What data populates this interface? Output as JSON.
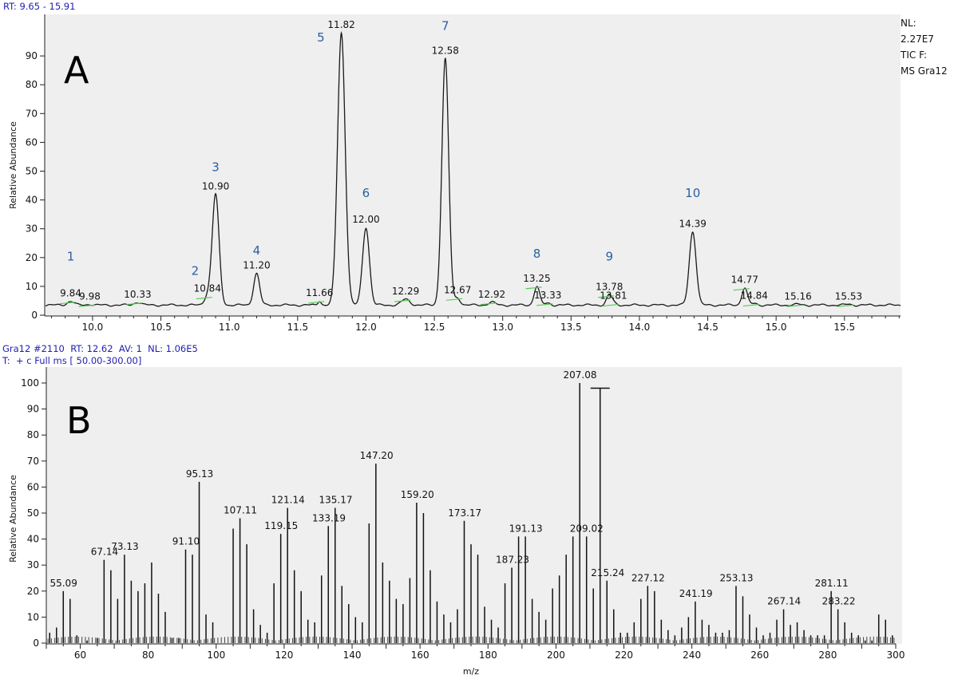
{
  "panel_a": {
    "header": "RT: 9.65 - 15.91",
    "nl_info": [
      "NL:",
      "2.27E7",
      "TIC F:",
      "MS Gra12"
    ],
    "letter": "A"
  },
  "panel_b": {
    "header_line1": "Gra12 #2110  RT: 12.62  AV: 1  NL: 1.06E5",
    "header_line2": "T:  + c Full ms [ 50.00-300.00]",
    "letter": "B"
  },
  "colors": {
    "header_text": "#1f1fb0",
    "peak_number": "#2a5fa0",
    "plot_background": "#efefef",
    "trace": "#1a1a1a",
    "baseline_marker": "#55cc55"
  },
  "chart_data": [
    {
      "type": "line",
      "title": "",
      "xlabel": "",
      "ylabel": "Relative Abundance",
      "xlim": [
        9.65,
        15.91
      ],
      "ylim": [
        0,
        100
      ],
      "xticks": [
        10.0,
        10.5,
        11.0,
        11.5,
        12.0,
        12.5,
        13.0,
        13.5,
        14.0,
        14.5,
        15.0,
        15.5
      ],
      "xtick_labels": [
        "10.0",
        "10.5",
        "11.0",
        "11.5",
        "12.0",
        "12.5",
        "13.0",
        "13.5",
        "14.0",
        "14.5",
        "15.0",
        "15.5"
      ],
      "yticks": [
        0,
        10,
        20,
        30,
        40,
        50,
        60,
        70,
        80,
        90
      ],
      "baseline": 3.5,
      "peaks": [
        {
          "rt": 9.84,
          "label": "9.84",
          "height": 4.8,
          "width": 0.025
        },
        {
          "rt": 9.98,
          "label": "9.98",
          "height": 3.8,
          "width": 0.02
        },
        {
          "rt": 10.33,
          "label": "10.33",
          "height": 4.5,
          "width": 0.025
        },
        {
          "rt": 10.84,
          "label": "10.84",
          "height": 6.5,
          "width": 0.022
        },
        {
          "rt": 10.9,
          "label": "10.90",
          "height": 42,
          "width": 0.025
        },
        {
          "rt": 11.2,
          "label": "11.20",
          "height": 14.5,
          "width": 0.022
        },
        {
          "rt": 11.66,
          "label": "11.66",
          "height": 5,
          "width": 0.012
        },
        {
          "rt": 11.82,
          "label": "11.82",
          "height": 98,
          "width": 0.028
        },
        {
          "rt": 12.0,
          "label": "12.00",
          "height": 30.5,
          "width": 0.025
        },
        {
          "rt": 12.29,
          "label": "12.29",
          "height": 5.5,
          "width": 0.03
        },
        {
          "rt": 12.58,
          "label": "12.58",
          "height": 89,
          "width": 0.025
        },
        {
          "rt": 12.67,
          "label": "12.67",
          "height": 6,
          "width": 0.02
        },
        {
          "rt": 12.92,
          "label": "12.92",
          "height": 4.5,
          "width": 0.025
        },
        {
          "rt": 13.25,
          "label": "13.25",
          "height": 10,
          "width": 0.02
        },
        {
          "rt": 13.33,
          "label": "13.33",
          "height": 4.2,
          "width": 0.02
        },
        {
          "rt": 13.78,
          "label": "13.78",
          "height": 7,
          "width": 0.02
        },
        {
          "rt": 13.81,
          "label": "13.81",
          "height": 4,
          "width": 0.02
        },
        {
          "rt": 14.39,
          "label": "14.39",
          "height": 29,
          "width": 0.025
        },
        {
          "rt": 14.77,
          "label": "14.77",
          "height": 9.5,
          "width": 0.02
        },
        {
          "rt": 14.84,
          "label": "14.84",
          "height": 4,
          "width": 0.02
        },
        {
          "rt": 15.16,
          "label": "15.16",
          "height": 3.8,
          "width": 0.02
        },
        {
          "rt": 15.53,
          "label": "15.53",
          "height": 3.8,
          "width": 0.02
        }
      ],
      "peak_numbers": [
        {
          "n": "1",
          "rt": 9.84,
          "y": 19
        },
        {
          "n": "2",
          "rt": 10.75,
          "y": 14
        },
        {
          "n": "3",
          "rt": 10.9,
          "y": 50
        },
        {
          "n": "4",
          "rt": 11.2,
          "y": 21
        },
        {
          "n": "5",
          "rt": 11.67,
          "y": 95
        },
        {
          "n": "6",
          "rt": 12.0,
          "y": 41
        },
        {
          "n": "7",
          "rt": 12.58,
          "y": 99
        },
        {
          "n": "8",
          "rt": 13.25,
          "y": 20
        },
        {
          "n": "9",
          "rt": 13.78,
          "y": 19
        },
        {
          "n": "10",
          "rt": 14.39,
          "y": 41
        }
      ]
    },
    {
      "type": "bar",
      "title": "",
      "xlabel": "m/z",
      "ylabel": "Relative Abundance",
      "xlim": [
        50,
        300
      ],
      "ylim": [
        0,
        100
      ],
      "xticks": [
        60,
        80,
        100,
        120,
        140,
        160,
        180,
        200,
        220,
        240,
        260,
        280,
        300
      ],
      "yticks": [
        0,
        10,
        20,
        30,
        40,
        50,
        60,
        70,
        80,
        90,
        100
      ],
      "peaks": [
        [
          51,
          4
        ],
        [
          53,
          6
        ],
        [
          55,
          20
        ],
        [
          57,
          17
        ],
        [
          59,
          3
        ],
        [
          62,
          1
        ],
        [
          65,
          2
        ],
        [
          67,
          32
        ],
        [
          69,
          28
        ],
        [
          71,
          17
        ],
        [
          73,
          34
        ],
        [
          75,
          24
        ],
        [
          77,
          20
        ],
        [
          79,
          23
        ],
        [
          81,
          31
        ],
        [
          83,
          19
        ],
        [
          85,
          12
        ],
        [
          87,
          2
        ],
        [
          89,
          2
        ],
        [
          91,
          36
        ],
        [
          93,
          34
        ],
        [
          95,
          62
        ],
        [
          97,
          11
        ],
        [
          99,
          8
        ],
        [
          105,
          44
        ],
        [
          107,
          48
        ],
        [
          109,
          38
        ],
        [
          111,
          13
        ],
        [
          113,
          7
        ],
        [
          115,
          4
        ],
        [
          117,
          23
        ],
        [
          119,
          42
        ],
        [
          121,
          52
        ],
        [
          123,
          28
        ],
        [
          125,
          20
        ],
        [
          127,
          9
        ],
        [
          129,
          8
        ],
        [
          131,
          26
        ],
        [
          133,
          45
        ],
        [
          135,
          52
        ],
        [
          137,
          22
        ],
        [
          139,
          15
        ],
        [
          141,
          10
        ],
        [
          143,
          8
        ],
        [
          145,
          46
        ],
        [
          147,
          69
        ],
        [
          149,
          31
        ],
        [
          151,
          24
        ],
        [
          153,
          17
        ],
        [
          155,
          15
        ],
        [
          157,
          25
        ],
        [
          159,
          54
        ],
        [
          161,
          50
        ],
        [
          163,
          28
        ],
        [
          165,
          16
        ],
        [
          167,
          11
        ],
        [
          169,
          8
        ],
        [
          171,
          13
        ],
        [
          173,
          47
        ],
        [
          175,
          38
        ],
        [
          177,
          34
        ],
        [
          179,
          14
        ],
        [
          181,
          9
        ],
        [
          183,
          6
        ],
        [
          185,
          23
        ],
        [
          187,
          29
        ],
        [
          189,
          41
        ],
        [
          191,
          41
        ],
        [
          193,
          17
        ],
        [
          195,
          12
        ],
        [
          197,
          9
        ],
        [
          199,
          21
        ],
        [
          201,
          26
        ],
        [
          203,
          34
        ],
        [
          205,
          41
        ],
        [
          207,
          100
        ],
        [
          209,
          41
        ],
        [
          211,
          21
        ],
        [
          213,
          16
        ],
        [
          215,
          24
        ],
        [
          217,
          13
        ],
        [
          219,
          4
        ],
        [
          221,
          4
        ],
        [
          223,
          8
        ],
        [
          225,
          17
        ],
        [
          227,
          22
        ],
        [
          229,
          20
        ],
        [
          231,
          9
        ],
        [
          233,
          5
        ],
        [
          235,
          3
        ],
        [
          237,
          6
        ],
        [
          239,
          10
        ],
        [
          241,
          16
        ],
        [
          243,
          9
        ],
        [
          245,
          7
        ],
        [
          247,
          4
        ],
        [
          249,
          4
        ],
        [
          251,
          5
        ],
        [
          253,
          22
        ],
        [
          255,
          18
        ],
        [
          257,
          11
        ],
        [
          259,
          6
        ],
        [
          261,
          3
        ],
        [
          263,
          4
        ],
        [
          265,
          9
        ],
        [
          267,
          13
        ],
        [
          269,
          7
        ],
        [
          271,
          8
        ],
        [
          273,
          5
        ],
        [
          275,
          3
        ],
        [
          277,
          3
        ],
        [
          279,
          3
        ],
        [
          281,
          20
        ],
        [
          283,
          13
        ],
        [
          285,
          8
        ],
        [
          287,
          4
        ],
        [
          289,
          3
        ],
        [
          291,
          1
        ],
        [
          293,
          1
        ],
        [
          295,
          11
        ],
        [
          297,
          9
        ],
        [
          299,
          3
        ]
      ],
      "labeled_peaks": [
        {
          "mz": 55.09,
          "label": "55.09",
          "y": 20
        },
        {
          "mz": 67.14,
          "label": "67.14",
          "y": 32
        },
        {
          "mz": 73.13,
          "label": "73.13",
          "y": 34
        },
        {
          "mz": 91.1,
          "label": "91.10",
          "y": 36
        },
        {
          "mz": 95.13,
          "label": "95.13",
          "y": 62
        },
        {
          "mz": 107.11,
          "label": "107.11",
          "y": 48
        },
        {
          "mz": 119.15,
          "label": "119.15",
          "y": 42
        },
        {
          "mz": 121.14,
          "label": "121.14",
          "y": 52
        },
        {
          "mz": 133.19,
          "label": "133.19",
          "y": 45
        },
        {
          "mz": 135.17,
          "label": "135.17",
          "y": 52
        },
        {
          "mz": 147.2,
          "label": "147.20",
          "y": 69
        },
        {
          "mz": 159.2,
          "label": "159.20",
          "y": 54
        },
        {
          "mz": 173.17,
          "label": "173.17",
          "y": 47
        },
        {
          "mz": 187.23,
          "label": "187.23",
          "y": 29
        },
        {
          "mz": 191.13,
          "label": "191.13",
          "y": 41
        },
        {
          "mz": 207.08,
          "label": "207.08",
          "y": 100
        },
        {
          "mz": 209.02,
          "label": "209.02",
          "y": 41
        },
        {
          "mz": 215.24,
          "label": "215.24",
          "y": 24
        },
        {
          "mz": 227.12,
          "label": "227.12",
          "y": 22
        },
        {
          "mz": 241.19,
          "label": "241.19",
          "y": 16
        },
        {
          "mz": 253.13,
          "label": "253.13",
          "y": 22
        },
        {
          "mz": 267.14,
          "label": "267.14",
          "y": 13
        },
        {
          "mz": 281.11,
          "label": "281.11",
          "y": 20
        },
        {
          "mz": 283.22,
          "label": "283.22",
          "y": 13
        }
      ],
      "cursor_mz": 213
    }
  ]
}
